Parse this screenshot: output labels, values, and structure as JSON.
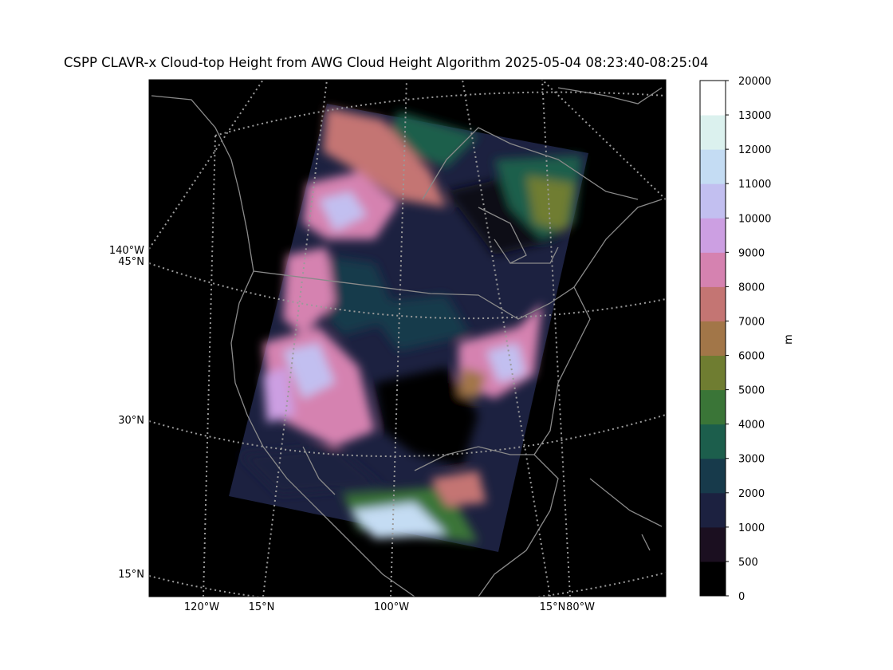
{
  "title": "CSPP CLAVR-x Cloud-top Height from AWG Cloud Height Algorithm 2025-05-04 08:23:40-08:25:04",
  "colorbar": {
    "unit": "m",
    "levels": [
      "0",
      "500",
      "1000",
      "2000",
      "3000",
      "4000",
      "5000",
      "6000",
      "7000",
      "8000",
      "9000",
      "10000",
      "11000",
      "12000",
      "13000",
      "20000"
    ],
    "colors": [
      "#000000",
      "#1b0f20",
      "#1c2140",
      "#173a4b",
      "#1c5e4c",
      "#3a7537",
      "#6f7d31",
      "#a27648",
      "#c47573",
      "#d582b0",
      "#cc9fe2",
      "#c2bff0",
      "#c4dcf3",
      "#dbf1ee",
      "#ffffff"
    ]
  },
  "axes": {
    "left_labels": [
      "140°W",
      "45°N",
      "30°N",
      "15°N"
    ],
    "bottom_labels": [
      "120°W",
      "15°N",
      "100°W",
      "15°N",
      "80°W"
    ]
  },
  "map_colors": {
    "background": "#000000",
    "coast": "#8a8a8a",
    "grid": "#9a9a9a"
  }
}
